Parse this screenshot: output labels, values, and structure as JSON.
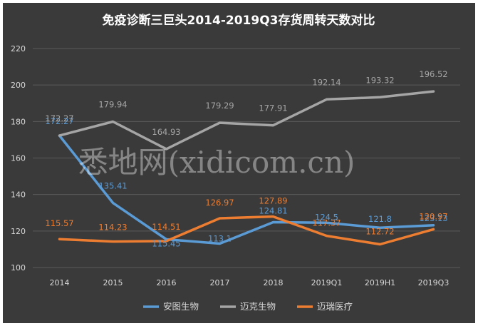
{
  "chart_data": {
    "type": "line",
    "title": "免疫诊断三巨头2014-2019Q3存货周转天数对比",
    "categories": [
      "2014",
      "2015",
      "2016",
      "2017",
      "2018",
      "2019Q1",
      "2019H1",
      "2019Q3"
    ],
    "ylim": [
      100,
      220
    ],
    "yticks": [
      "100",
      "120",
      "140",
      "160",
      "180",
      "200",
      "220"
    ],
    "grid": true,
    "legend_position": "bottom-center",
    "series": [
      {
        "name": "安图生物",
        "color": "#5b9bd5",
        "values": [
          172.27,
          135.41,
          115.45,
          113.1,
          124.81,
          124.5,
          121.8,
          123.13
        ],
        "labels": [
          "172.27",
          "135.41",
          "115.45",
          "113.1",
          "124.81",
          "124.5",
          "121.8",
          "123.13"
        ]
      },
      {
        "name": "迈克生物",
        "color": "#a5a5a5",
        "values": [
          172.27,
          179.94,
          164.93,
          179.29,
          177.91,
          192.14,
          193.32,
          196.52
        ],
        "labels": [
          "172.27",
          "179.94",
          "164.93",
          "179.29",
          "177.91",
          "192.14",
          "193.32",
          "196.52"
        ]
      },
      {
        "name": "迈瑞医疗",
        "color": "#ed7d31",
        "values": [
          115.57,
          114.23,
          114.51,
          126.97,
          127.89,
          117.37,
          112.72,
          120.97
        ],
        "labels": [
          "115.57",
          "114.23",
          "114.51",
          "126.97",
          "127.89",
          "117.37",
          "112.72",
          "120.97"
        ]
      }
    ]
  },
  "watermark_text": "悉地网(xidicom.cn)"
}
